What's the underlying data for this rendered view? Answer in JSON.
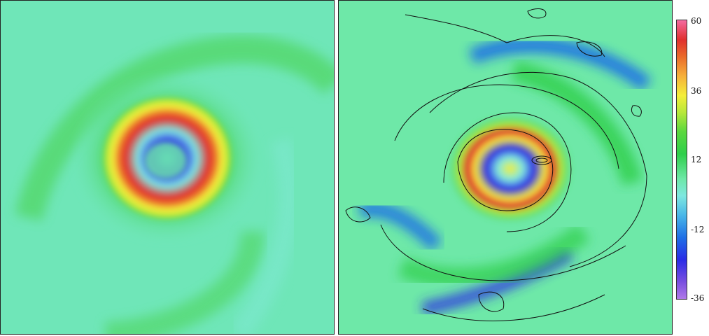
{
  "colorbar": {
    "ticks": [
      "60",
      "36",
      "12",
      "-12",
      "-36"
    ],
    "values": [
      60,
      36,
      12,
      -12,
      -36
    ],
    "range": [
      -36,
      60
    ]
  },
  "chart_data": [
    {
      "type": "heatmap",
      "panel": "left",
      "description_colors": [
        "#6fe6b8",
        "#2ecf4a",
        "#f4ee3a",
        "#e0302e",
        "#2a2be6",
        "#49b7e8"
      ],
      "contours": false
    },
    {
      "type": "heatmap",
      "panel": "right",
      "description_colors": [
        "#6fe6b8",
        "#2ecf4a",
        "#f4ee3a",
        "#e0302e",
        "#2a2be6",
        "#49b7e8"
      ],
      "contours": true
    }
  ]
}
